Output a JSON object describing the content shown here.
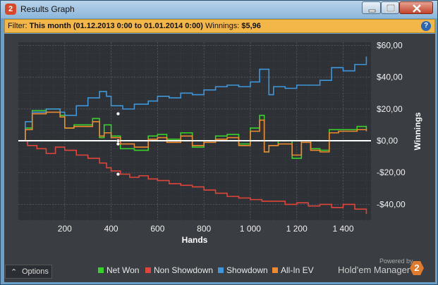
{
  "window": {
    "title": "Results Graph"
  },
  "filter": {
    "label": "Filter:",
    "period": "This month (01.12.2013 0:00 to 01.01.2014 0:00)",
    "winnings_label": "Winnings:",
    "winnings_value": "$5,96"
  },
  "options_label": "Options",
  "brand": {
    "powered_by": "Powered by",
    "product": "Hold'em Manager"
  },
  "colors": {
    "net_won": "#3ad12c",
    "non_showdown": "#e0453a",
    "showdown": "#3f97d9",
    "all_in_ev": "#ef8a2e",
    "background": "#3a3d42",
    "filter_bar": "#f2b748"
  },
  "chart_data": {
    "type": "line",
    "xlabel": "Hands",
    "ylabel": "Winnings",
    "xlim": [
      0,
      1520
    ],
    "ylim": [
      -50,
      62
    ],
    "x_ticks": [
      200,
      400,
      600,
      800,
      1000,
      1200,
      1400
    ],
    "x_tick_labels": [
      "200",
      "400",
      "600",
      "800",
      "1 000",
      "1 200",
      "1 400"
    ],
    "y_ticks": [
      60,
      40,
      20,
      0,
      -20,
      -40
    ],
    "y_tick_labels": [
      "$60,00",
      "$40,00",
      "$20,00",
      "$0,00",
      "-$20,00",
      "-$40,00"
    ],
    "grid": true,
    "legend_position": "bottom",
    "series": [
      {
        "name": "Net Won",
        "color": "#3ad12c",
        "x": [
          0,
          30,
          60,
          120,
          180,
          200,
          240,
          320,
          350,
          370,
          400,
          440,
          500,
          560,
          600,
          640,
          700,
          750,
          800,
          850,
          900,
          950,
          1000,
          1040,
          1060,
          1080,
          1120,
          1180,
          1220,
          1260,
          1300,
          1340,
          1380,
          1420,
          1460,
          1500
        ],
        "y": [
          0,
          8,
          19,
          20,
          16,
          8,
          10,
          14,
          2,
          10,
          3,
          -5,
          -6,
          3,
          4,
          1,
          5,
          -4,
          0,
          3,
          4,
          -2,
          8,
          16,
          -7,
          -3,
          0,
          -11,
          0,
          -5,
          -6,
          7,
          7,
          7,
          9,
          7
        ]
      },
      {
        "name": "Non Showdown",
        "color": "#e0453a",
        "x": [
          0,
          40,
          80,
          120,
          160,
          200,
          250,
          300,
          350,
          380,
          400,
          440,
          480,
          520,
          560,
          600,
          650,
          700,
          750,
          800,
          850,
          900,
          950,
          1000,
          1050,
          1100,
          1150,
          1200,
          1250,
          1300,
          1350,
          1400,
          1450,
          1500
        ],
        "y": [
          0,
          -3,
          -5,
          -8,
          -4,
          -6,
          -9,
          -11,
          -14,
          -17,
          -19,
          -21,
          -23,
          -22,
          -24,
          -25,
          -27,
          -28,
          -29,
          -31,
          -33,
          -35,
          -36,
          -37,
          -38,
          -38,
          -40,
          -39,
          -41,
          -40,
          -42,
          -40,
          -43,
          -46
        ]
      },
      {
        "name": "Showdown",
        "color": "#3f97d9",
        "x": [
          0,
          30,
          60,
          120,
          180,
          200,
          250,
          300,
          350,
          380,
          400,
          450,
          500,
          560,
          600,
          650,
          700,
          750,
          800,
          850,
          900,
          950,
          1000,
          1040,
          1060,
          1080,
          1100,
          1150,
          1200,
          1250,
          1300,
          1350,
          1400,
          1450,
          1500
        ],
        "y": [
          0,
          12,
          18,
          20,
          18,
          16,
          22,
          27,
          31,
          28,
          22,
          20,
          23,
          25,
          28,
          27,
          30,
          29,
          32,
          34,
          35,
          34,
          37,
          45,
          45,
          29,
          34,
          33,
          35,
          35,
          38,
          46,
          44,
          48,
          53
        ]
      },
      {
        "name": "All-In EV",
        "color": "#ef8a2e",
        "x": [
          0,
          30,
          60,
          120,
          180,
          200,
          240,
          320,
          350,
          370,
          400,
          440,
          500,
          560,
          600,
          640,
          700,
          750,
          800,
          850,
          900,
          950,
          1000,
          1040,
          1060,
          1080,
          1120,
          1180,
          1220,
          1260,
          1300,
          1340,
          1380,
          1420,
          1460,
          1500
        ],
        "y": [
          0,
          7,
          17,
          18,
          15,
          8,
          9,
          12,
          3,
          5,
          2,
          -2,
          -4,
          1,
          2,
          -1,
          3,
          -3,
          -1,
          1,
          2,
          -3,
          6,
          13,
          -7,
          -3,
          -2,
          -9,
          -1,
          -6,
          -7,
          5,
          6,
          6,
          7,
          6
        ]
      }
    ],
    "markers": [
      {
        "x": 430,
        "y": 17
      },
      {
        "x": 430,
        "y": 0
      },
      {
        "x": 430,
        "y": -2
      },
      {
        "x": 430,
        "y": -21
      }
    ]
  }
}
